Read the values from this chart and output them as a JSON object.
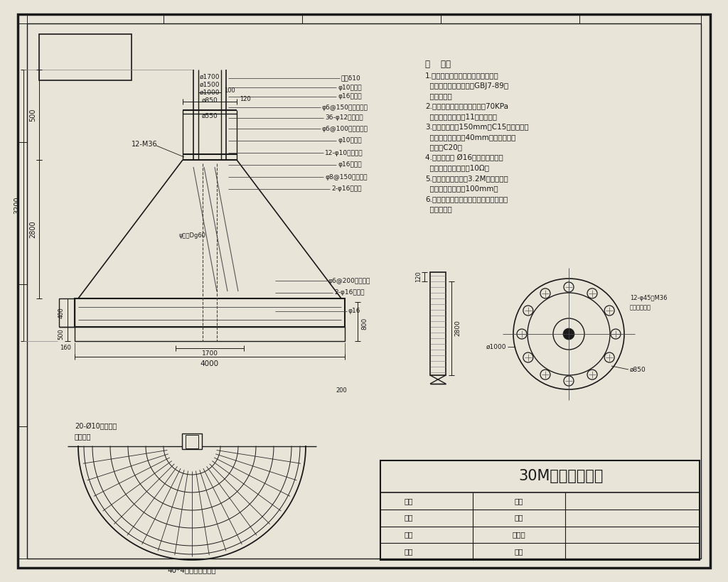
{
  "bg_color": "#e8e4d8",
  "line_color": "#1a1a1a",
  "text_color": "#1a1a1a",
  "title": "30M高杆灯基础图",
  "notes_header": "说    明：",
  "notes": [
    "1.本基础为钢筋混凝土结构；按《建",
    "  筑地基基础设计规范》GBJ7-89等",
    "  标准设计。",
    "2.本基础适用于地基强度值＞70KPa",
    "  和最大风力不超过11级的地区；",
    "3.本基础垫层为150mm厚C15素混凝土，",
    "  钢筋保护层厚度为40mm，混凝土强度",
    "  等级为C20；",
    "4.两根接地线 Ø16与地脚螺栓应焊",
    "  并，接地电阻应小于10Ω；",
    "5.本基础埋置深度为3.2M，基础顶面",
    "  应高出回填土表面100mm；",
    "6.本图纸未详尽事宜参照国家有关规定，",
    "  标准执行。"
  ],
  "title_block_rows": [
    [
      "设计",
      "控制"
    ],
    [
      "出图",
      "工艺"
    ],
    [
      "审核",
      "标准化"
    ],
    [
      "规范",
      "只测"
    ]
  ]
}
